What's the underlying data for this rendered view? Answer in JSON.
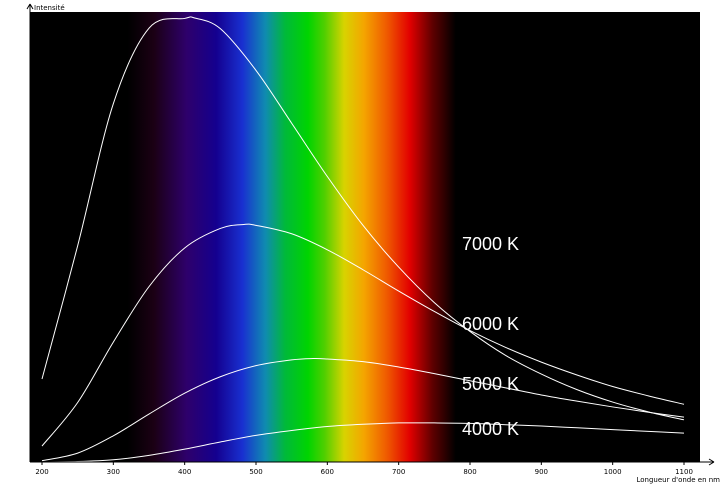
{
  "chart_data": {
    "type": "line",
    "title": "",
    "xlabel": "Longueur d'onde en nm",
    "ylabel": "Intensité",
    "xlim": [
      200,
      1100
    ],
    "ylim": [
      0,
      1
    ],
    "x_ticks": [
      "200",
      "300",
      "400",
      "500",
      "600",
      "700",
      "800",
      "900",
      "1000",
      "1100"
    ],
    "grid": false,
    "background": "#000000",
    "line_color": "#ffffff",
    "background_spectrum": {
      "description": "visible light spectrum shown behind the curves",
      "range_nm": [
        320,
        780
      ]
    },
    "series": [
      {
        "name": "7000 K",
        "x": [
          200,
          250,
          300,
          350,
          400,
          414,
          450,
          500,
          550,
          600,
          650,
          700,
          750,
          800,
          850,
          900,
          950,
          1000,
          1050,
          1100
        ],
        "values": [
          0.187,
          0.487,
          0.807,
          0.977,
          0.999,
          1.0,
          0.976,
          0.882,
          0.763,
          0.643,
          0.533,
          0.439,
          0.359,
          0.294,
          0.24,
          0.198,
          0.163,
          0.135,
          0.113,
          0.095
        ]
      },
      {
        "name": "6000 K",
        "x": [
          200,
          250,
          300,
          350,
          400,
          450,
          483,
          500,
          550,
          600,
          650,
          700,
          750,
          800,
          850,
          900,
          950,
          1000,
          1050,
          1100
        ],
        "values": [
          0.036,
          0.134,
          0.27,
          0.395,
          0.482,
          0.526,
          0.535,
          0.533,
          0.514,
          0.478,
          0.433,
          0.385,
          0.339,
          0.296,
          0.258,
          0.225,
          0.196,
          0.17,
          0.149,
          0.13
        ]
      },
      {
        "name": "5000 K",
        "x": [
          200,
          250,
          300,
          350,
          400,
          450,
          500,
          550,
          580,
          600,
          650,
          700,
          750,
          800,
          850,
          900,
          950,
          1000,
          1050,
          1100
        ],
        "values": [
          0.003,
          0.02,
          0.059,
          0.108,
          0.155,
          0.192,
          0.217,
          0.23,
          0.233,
          0.232,
          0.226,
          0.214,
          0.199,
          0.183,
          0.167,
          0.151,
          0.137,
          0.124,
          0.112,
          0.101
        ]
      },
      {
        "name": "4000 K",
        "x": [
          200,
          250,
          300,
          350,
          400,
          450,
          500,
          550,
          600,
          650,
          700,
          725,
          750,
          800,
          850,
          900,
          950,
          1000,
          1050,
          1100
        ],
        "values": [
          0.0,
          0.001,
          0.005,
          0.015,
          0.029,
          0.045,
          0.06,
          0.071,
          0.08,
          0.085,
          0.088,
          0.088,
          0.088,
          0.087,
          0.084,
          0.081,
          0.077,
          0.073,
          0.069,
          0.065
        ]
      }
    ]
  }
}
